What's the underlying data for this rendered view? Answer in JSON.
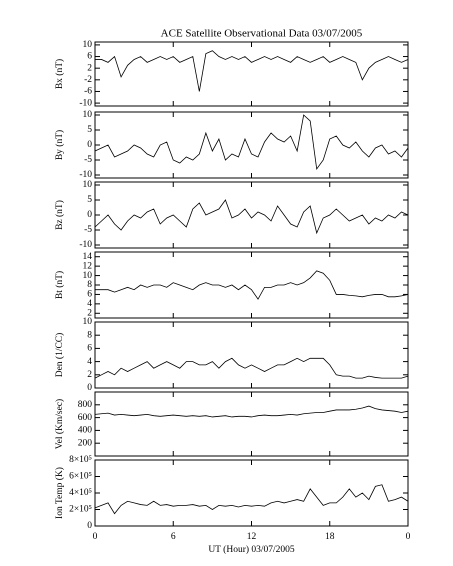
{
  "chart_data": [
    {
      "type": "line",
      "title": "ACE Satellite Observational Data   03/07/2005",
      "ylabel": "Bx (nT)",
      "color": "#000000",
      "xlim": [
        0,
        24
      ],
      "xticks": [
        0,
        6,
        12,
        18,
        {
          "value": 24,
          "label": "0"
        }
      ],
      "x": [
        0,
        0.5,
        1,
        1.5,
        2,
        2.5,
        3,
        3.5,
        4,
        4.5,
        5,
        5.5,
        6,
        6.5,
        7,
        7.5,
        8,
        8.5,
        9,
        9.5,
        10,
        10.5,
        11,
        11.5,
        12,
        12.5,
        13,
        13.5,
        14,
        14.5,
        15,
        15.5,
        16,
        16.5,
        17,
        17.5,
        18,
        18.5,
        19,
        19.5,
        20,
        20.5,
        21,
        21.5,
        22,
        22.5,
        23,
        23.5,
        24
      ],
      "ylim": [
        -11,
        11
      ],
      "yticks": [
        -10,
        -6,
        -2,
        2,
        6,
        10
      ],
      "values": [
        5,
        5,
        4,
        6,
        -1,
        3,
        5,
        6,
        4,
        5,
        6,
        5,
        6,
        4,
        5,
        6,
        -6,
        7,
        8,
        6,
        5,
        6,
        5,
        6,
        4,
        5,
        6,
        5,
        6,
        5,
        4,
        6,
        5,
        4,
        5,
        6,
        4,
        5,
        6,
        5,
        4,
        -2,
        2,
        4,
        5,
        6,
        5,
        4,
        5
      ]
    },
    {
      "type": "line",
      "ylabel": "By (nT)",
      "color": "#000000",
      "xlim": [
        0,
        24
      ],
      "xticks": [
        0,
        6,
        12,
        18,
        {
          "value": 24,
          "label": "0"
        }
      ],
      "x": [
        0,
        0.5,
        1,
        1.5,
        2,
        2.5,
        3,
        3.5,
        4,
        4.5,
        5,
        5.5,
        6,
        6.5,
        7,
        7.5,
        8,
        8.5,
        9,
        9.5,
        10,
        10.5,
        11,
        11.5,
        12,
        12.5,
        13,
        13.5,
        14,
        14.5,
        15,
        15.5,
        16,
        16.5,
        17,
        17.5,
        18,
        18.5,
        19,
        19.5,
        20,
        20.5,
        21,
        21.5,
        22,
        22.5,
        23,
        23.5,
        24
      ],
      "ylim": [
        -11,
        11
      ],
      "yticks": [
        -10,
        -5,
        0,
        5,
        10
      ],
      "values": [
        -2,
        -1,
        0,
        -4,
        -3,
        -2,
        0,
        -1,
        -3,
        -4,
        0,
        1,
        -5,
        -6,
        -4,
        -5,
        -3,
        4,
        -2,
        2,
        -5,
        -3,
        -4,
        2,
        -3,
        -4,
        1,
        4,
        2,
        1,
        3,
        -2,
        10,
        8,
        -8,
        -5,
        2,
        3,
        0,
        -1,
        1,
        -2,
        -4,
        -1,
        0,
        -3,
        -2,
        -4,
        -1
      ]
    },
    {
      "type": "line",
      "ylabel": "Bz (nT)",
      "color": "#000000",
      "xlim": [
        0,
        24
      ],
      "xticks": [
        0,
        6,
        12,
        18,
        {
          "value": 24,
          "label": "0"
        }
      ],
      "x": [
        0,
        0.5,
        1,
        1.5,
        2,
        2.5,
        3,
        3.5,
        4,
        4.5,
        5,
        5.5,
        6,
        6.5,
        7,
        7.5,
        8,
        8.5,
        9,
        9.5,
        10,
        10.5,
        11,
        11.5,
        12,
        12.5,
        13,
        13.5,
        14,
        14.5,
        15,
        15.5,
        16,
        16.5,
        17,
        17.5,
        18,
        18.5,
        19,
        19.5,
        20,
        20.5,
        21,
        21.5,
        22,
        22.5,
        23,
        23.5,
        24
      ],
      "ylim": [
        -11,
        11
      ],
      "yticks": [
        -10,
        -5,
        0,
        5,
        10
      ],
      "values": [
        -4,
        -2,
        0,
        -3,
        -5,
        -2,
        0,
        -1,
        1,
        2,
        -3,
        -1,
        0,
        -2,
        -4,
        2,
        4,
        0,
        1,
        2,
        5,
        -1,
        0,
        2,
        -1,
        1,
        0,
        -2,
        3,
        0,
        -3,
        -4,
        1,
        3,
        -6,
        -1,
        0,
        2,
        0,
        -2,
        -1,
        0,
        -3,
        -1,
        -2,
        0,
        -1,
        1,
        0
      ]
    },
    {
      "type": "line",
      "ylabel": "Bt (nT)",
      "color": "#000000",
      "xlim": [
        0,
        24
      ],
      "xticks": [
        0,
        6,
        12,
        18,
        {
          "value": 24,
          "label": "0"
        }
      ],
      "x": [
        0,
        0.5,
        1,
        1.5,
        2,
        2.5,
        3,
        3.5,
        4,
        4.5,
        5,
        5.5,
        6,
        6.5,
        7,
        7.5,
        8,
        8.5,
        9,
        9.5,
        10,
        10.5,
        11,
        11.5,
        12,
        12.5,
        13,
        13.5,
        14,
        14.5,
        15,
        15.5,
        16,
        16.5,
        17,
        17.5,
        18,
        18.5,
        19,
        19.5,
        20,
        20.5,
        21,
        21.5,
        22,
        22.5,
        23,
        23.5,
        24
      ],
      "ylim": [
        1,
        15
      ],
      "yticks": [
        2,
        4,
        6,
        8,
        10,
        12,
        14
      ],
      "values": [
        7,
        7,
        7,
        6.5,
        7,
        7.5,
        7,
        8,
        7.5,
        8,
        8,
        7.5,
        8.5,
        8,
        7.5,
        7,
        8,
        8.5,
        8,
        8,
        7.5,
        8,
        7,
        8,
        7,
        5,
        7.5,
        7.5,
        8,
        8,
        8.5,
        8,
        8.5,
        9.5,
        11,
        10.5,
        9,
        6,
        6,
        5.8,
        5.7,
        5.5,
        5.8,
        6,
        6,
        5.5,
        5.5,
        5.7,
        6
      ]
    },
    {
      "type": "line",
      "ylabel": "Den (1/CC)",
      "color": "#000000",
      "xlim": [
        0,
        24
      ],
      "xticks": [
        0,
        6,
        12,
        18,
        {
          "value": 24,
          "label": "0"
        }
      ],
      "x": [
        0,
        0.5,
        1,
        1.5,
        2,
        2.5,
        3,
        3.5,
        4,
        4.5,
        5,
        5.5,
        6,
        6.5,
        7,
        7.5,
        8,
        8.5,
        9,
        9.5,
        10,
        10.5,
        11,
        11.5,
        12,
        12.5,
        13,
        13.5,
        14,
        14.5,
        15,
        15.5,
        16,
        16.5,
        17,
        17.5,
        18,
        18.5,
        19,
        19.5,
        20,
        20.5,
        21,
        21.5,
        22,
        22.5,
        23,
        23.5,
        24
      ],
      "ylim": [
        0,
        10
      ],
      "yticks": [
        0,
        2,
        4,
        6,
        8,
        10
      ],
      "values": [
        1.5,
        2,
        2.5,
        2,
        3,
        2.5,
        3,
        3.5,
        4,
        3,
        3.5,
        4,
        3.5,
        3,
        4,
        4,
        3.5,
        3.5,
        4,
        3,
        4,
        4.5,
        3.5,
        3,
        3.5,
        3,
        2.5,
        3,
        3.5,
        3.5,
        4,
        4.5,
        4,
        4.5,
        4.5,
        4.5,
        3.5,
        2,
        1.8,
        1.8,
        1.5,
        1.5,
        1.8,
        1.6,
        1.5,
        1.5,
        1.5,
        1.5,
        1.8
      ]
    },
    {
      "type": "line",
      "ylabel": "Vel (Km/sec)",
      "color": "#000000",
      "xlim": [
        0,
        24
      ],
      "xticks": [
        0,
        6,
        12,
        18,
        {
          "value": 24,
          "label": "0"
        }
      ],
      "x": [
        0,
        0.5,
        1,
        1.5,
        2,
        2.5,
        3,
        3.5,
        4,
        4.5,
        5,
        5.5,
        6,
        6.5,
        7,
        7.5,
        8,
        8.5,
        9,
        9.5,
        10,
        10.5,
        11,
        11.5,
        12,
        12.5,
        13,
        13.5,
        14,
        14.5,
        15,
        15.5,
        16,
        16.5,
        17,
        17.5,
        18,
        18.5,
        19,
        19.5,
        20,
        20.5,
        21,
        21.5,
        22,
        22.5,
        23,
        23.5,
        24
      ],
      "ylim": [
        0,
        1000
      ],
      "yticks": [
        200,
        400,
        600,
        800
      ],
      "values": [
        650,
        660,
        670,
        640,
        650,
        640,
        630,
        640,
        650,
        630,
        620,
        630,
        640,
        630,
        620,
        630,
        620,
        630,
        610,
        620,
        630,
        610,
        620,
        620,
        610,
        630,
        640,
        630,
        630,
        640,
        650,
        640,
        660,
        670,
        680,
        680,
        700,
        720,
        720,
        720,
        730,
        750,
        780,
        740,
        720,
        710,
        700,
        680,
        700
      ]
    },
    {
      "type": "line",
      "ylabel": "Ion Temp (K)",
      "xlabel": "UT (Hour)   03/07/2005",
      "color": "#000000",
      "xlim": [
        0,
        24
      ],
      "xticks": [
        0,
        6,
        12,
        18,
        {
          "value": 24,
          "label": "0"
        }
      ],
      "x": [
        0,
        0.5,
        1,
        1.5,
        2,
        2.5,
        3,
        3.5,
        4,
        4.5,
        5,
        5.5,
        6,
        6.5,
        7,
        7.5,
        8,
        8.5,
        9,
        9.5,
        10,
        10.5,
        11,
        11.5,
        12,
        12.5,
        13,
        13.5,
        14,
        14.5,
        15,
        15.5,
        16,
        16.5,
        17,
        17.5,
        18,
        18.5,
        19,
        19.5,
        20,
        20.5,
        21,
        21.5,
        22,
        22.5,
        23,
        23.5,
        24
      ],
      "ylim": [
        0,
        800000
      ],
      "yticks": [
        0,
        {
          "value": 200000,
          "label": "2×10⁵"
        },
        {
          "value": 400000,
          "label": "4×10⁵"
        },
        {
          "value": 600000,
          "label": "6×10⁵"
        },
        {
          "value": 800000,
          "label": "8×10⁵"
        }
      ],
      "values": [
        220000,
        250000,
        280000,
        150000,
        250000,
        300000,
        280000,
        260000,
        250000,
        300000,
        250000,
        260000,
        240000,
        250000,
        250000,
        260000,
        240000,
        250000,
        200000,
        250000,
        240000,
        250000,
        230000,
        250000,
        240000,
        250000,
        240000,
        280000,
        300000,
        280000,
        300000,
        320000,
        300000,
        450000,
        350000,
        250000,
        280000,
        280000,
        350000,
        450000,
        350000,
        400000,
        320000,
        480000,
        500000,
        300000,
        320000,
        350000,
        300000
      ]
    }
  ]
}
